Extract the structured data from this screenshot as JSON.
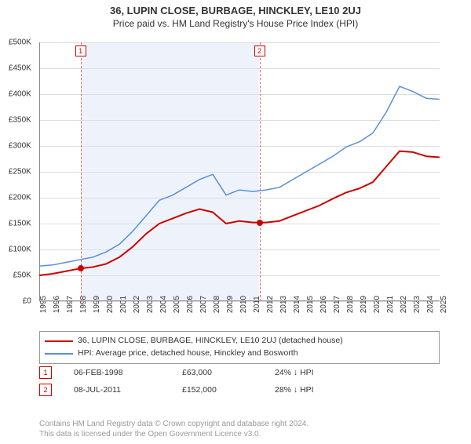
{
  "title": "36, LUPIN CLOSE, BURBAGE, HINCKLEY, LE10 2UJ",
  "subtitle": "Price paid vs. HM Land Registry's House Price Index (HPI)",
  "chart": {
    "type": "line",
    "background_color": "#ffffff",
    "shade_color": "#eef3fb",
    "grid_color": "#dddddd",
    "axis_color": "#888888",
    "ylim": [
      0,
      500000
    ],
    "ytick_step": 50000,
    "ytick_labels": [
      "£0",
      "£50K",
      "£100K",
      "£150K",
      "£200K",
      "£250K",
      "£300K",
      "£350K",
      "£400K",
      "£450K",
      "£500K"
    ],
    "x_years": [
      1995,
      1996,
      1997,
      1998,
      1999,
      2000,
      2001,
      2002,
      2003,
      2004,
      2005,
      2006,
      2007,
      2008,
      2009,
      2010,
      2011,
      2012,
      2013,
      2014,
      2015,
      2016,
      2017,
      2018,
      2019,
      2020,
      2021,
      2022,
      2023,
      2024,
      2025
    ],
    "shade_from_year": 1998.1,
    "shade_to_year": 2011.5,
    "series": [
      {
        "name": "property",
        "label": "36, LUPIN CLOSE, BURBAGE, HINCKLEY, LE10 2UJ (detached house)",
        "color": "#cc0000",
        "width": 2,
        "points": [
          [
            1995,
            50000
          ],
          [
            1996,
            53000
          ],
          [
            1997,
            58000
          ],
          [
            1998,
            63000
          ],
          [
            1999,
            66000
          ],
          [
            2000,
            72000
          ],
          [
            2001,
            85000
          ],
          [
            2002,
            105000
          ],
          [
            2003,
            130000
          ],
          [
            2004,
            150000
          ],
          [
            2005,
            160000
          ],
          [
            2006,
            170000
          ],
          [
            2007,
            178000
          ],
          [
            2008,
            172000
          ],
          [
            2009,
            150000
          ],
          [
            2010,
            155000
          ],
          [
            2011,
            152000
          ],
          [
            2012,
            152000
          ],
          [
            2013,
            155000
          ],
          [
            2014,
            165000
          ],
          [
            2015,
            175000
          ],
          [
            2016,
            185000
          ],
          [
            2017,
            198000
          ],
          [
            2018,
            210000
          ],
          [
            2019,
            218000
          ],
          [
            2020,
            230000
          ],
          [
            2021,
            260000
          ],
          [
            2022,
            290000
          ],
          [
            2023,
            288000
          ],
          [
            2024,
            280000
          ],
          [
            2025,
            278000
          ]
        ]
      },
      {
        "name": "hpi",
        "label": "HPI: Average price, detached house, Hinckley and Bosworth",
        "color": "#5a8fd6",
        "width": 1.5,
        "points": [
          [
            1995,
            68000
          ],
          [
            1996,
            70000
          ],
          [
            1997,
            75000
          ],
          [
            1998,
            80000
          ],
          [
            1999,
            85000
          ],
          [
            2000,
            95000
          ],
          [
            2001,
            110000
          ],
          [
            2002,
            135000
          ],
          [
            2003,
            165000
          ],
          [
            2004,
            195000
          ],
          [
            2005,
            205000
          ],
          [
            2006,
            220000
          ],
          [
            2007,
            235000
          ],
          [
            2008,
            245000
          ],
          [
            2009,
            205000
          ],
          [
            2010,
            215000
          ],
          [
            2011,
            212000
          ],
          [
            2012,
            215000
          ],
          [
            2013,
            220000
          ],
          [
            2014,
            235000
          ],
          [
            2015,
            250000
          ],
          [
            2016,
            265000
          ],
          [
            2017,
            280000
          ],
          [
            2018,
            298000
          ],
          [
            2019,
            308000
          ],
          [
            2020,
            325000
          ],
          [
            2021,
            365000
          ],
          [
            2022,
            415000
          ],
          [
            2023,
            405000
          ],
          [
            2024,
            392000
          ],
          [
            2025,
            390000
          ]
        ]
      }
    ],
    "event_line_color": "#d66",
    "events": [
      {
        "n": "1",
        "year": 1998.1,
        "price_y": 63000
      },
      {
        "n": "2",
        "year": 2011.5,
        "price_y": 152000
      }
    ]
  },
  "legend": [
    {
      "color": "#cc0000",
      "text": "36, LUPIN CLOSE, BURBAGE, HINCKLEY, LE10 2UJ (detached house)"
    },
    {
      "color": "#5a8fd6",
      "text": "HPI: Average price, detached house, Hinckley and Bosworth"
    }
  ],
  "events_table": [
    {
      "n": "1",
      "date": "06-FEB-1998",
      "price": "£63,000",
      "delta": "24% ↓ HPI"
    },
    {
      "n": "2",
      "date": "08-JUL-2011",
      "price": "£152,000",
      "delta": "28% ↓ HPI"
    }
  ],
  "footnote_line1": "Contains HM Land Registry data © Crown copyright and database right 2024.",
  "footnote_line2": "This data is licensed under the Open Government Licence v3.0."
}
